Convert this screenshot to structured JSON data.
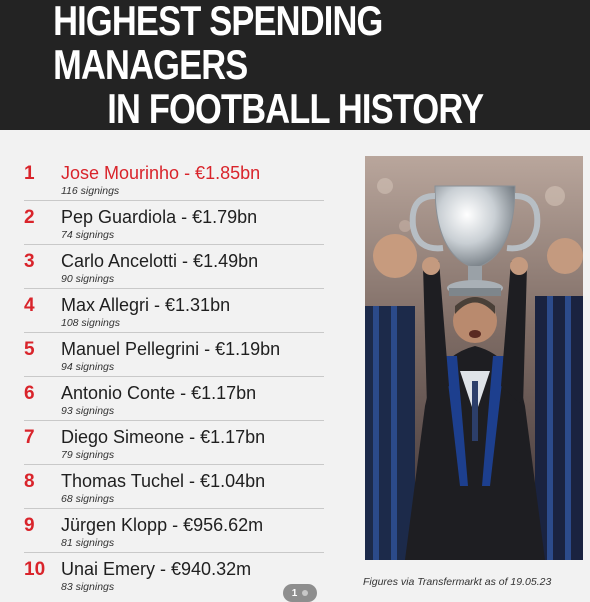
{
  "header": {
    "title_line1": "HIGHEST SPENDING MANAGERS",
    "title_line2": "IN FOOTBALL HISTORY"
  },
  "managers": [
    {
      "rank": "1",
      "name": "Jose Mourinho - €1.85bn",
      "signings": "116 signings"
    },
    {
      "rank": "2",
      "name": "Pep Guardiola - €1.79bn",
      "signings": "74 signings"
    },
    {
      "rank": "3",
      "name": "Carlo Ancelotti - €1.49bn",
      "signings": "90 signings"
    },
    {
      "rank": "4",
      "name": "Max Allegri - €1.31bn",
      "signings": "108 signings"
    },
    {
      "rank": "5",
      "name": "Manuel Pellegrini - €1.19bn",
      "signings": "94 signings"
    },
    {
      "rank": "6",
      "name": "Antonio Conte - €1.17bn",
      "signings": "93 signings"
    },
    {
      "rank": "7",
      "name": "Diego Simeone - €1.17bn",
      "signings": "79 signings"
    },
    {
      "rank": "8",
      "name": "Thomas Tuchel - €1.04bn",
      "signings": "68 signings"
    },
    {
      "rank": "9",
      "name": "Jürgen Klopp - €956.62m",
      "signings": "81 signings"
    },
    {
      "rank": "10",
      "name": "Unai Emery - €940.32m",
      "signings": "83 signings"
    }
  ],
  "source_note": "Figures via Transfermarkt as of 19.05.23",
  "pager": {
    "current": "1"
  },
  "colors": {
    "accent": "#d9242b",
    "header_bg": "#232323",
    "page_bg": "#f2f2f2"
  }
}
